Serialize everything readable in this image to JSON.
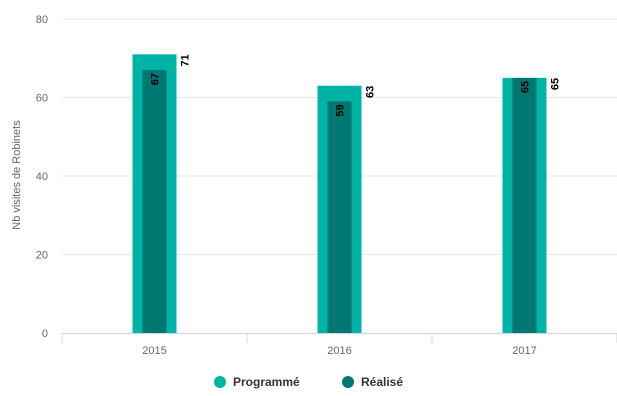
{
  "chart_data": {
    "type": "bar",
    "categories": [
      "2015",
      "2016",
      "2017"
    ],
    "series": [
      {
        "name": "Programmé",
        "values": [
          71,
          63,
          65
        ],
        "color": "#00b3a7"
      },
      {
        "name": "Réalisé",
        "values": [
          67,
          59,
          65
        ],
        "color": "#007771"
      }
    ],
    "ylabel": "Nb visites de Robinets",
    "ylim": [
      0,
      80
    ],
    "yticks": [
      0,
      20,
      40,
      60,
      80
    ],
    "grid": true,
    "legend_position": "bottom-center",
    "colors": {
      "grid": "#e6e6e6",
      "axis": "#ccd6eb",
      "tick_text": "#666666"
    }
  }
}
